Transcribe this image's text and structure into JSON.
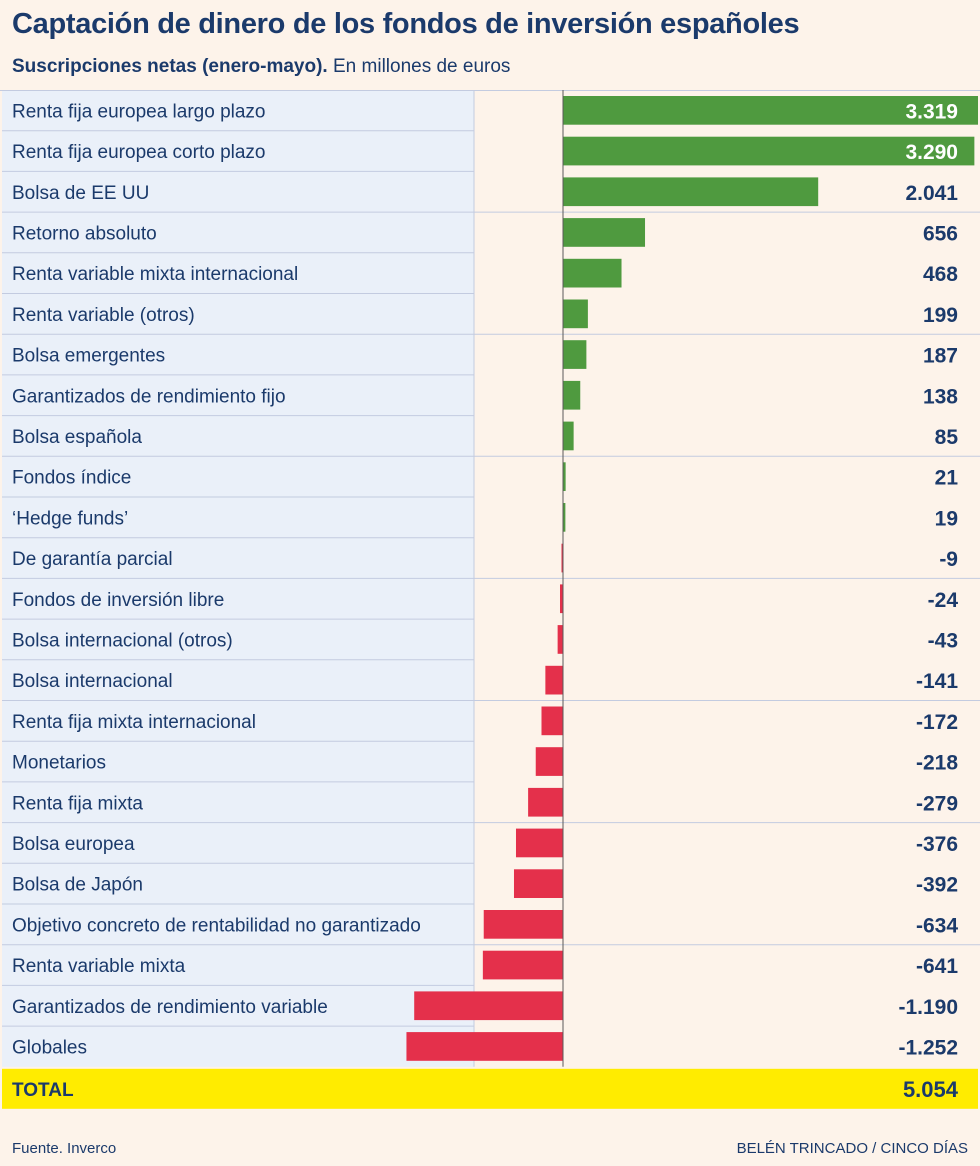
{
  "header": {
    "title": "Captación de dinero de los fondos de inversión españoles",
    "subtitle_bold": "Suscripciones netas (enero-mayo).",
    "subtitle_rest": "En millones de euros"
  },
  "footer": {
    "source": "Fuente. Inverco",
    "credit": "BELÉN TRINCADO / CINCO DÍAS"
  },
  "colors": {
    "positive": "#4f9a3f",
    "negative": "#e4304b",
    "label_band": "#eaf0f9",
    "grid": "#c3cbe0",
    "total_band": "#ffec00",
    "text": "#1b3a6b"
  },
  "chart_data": {
    "type": "bar",
    "orientation": "horizontal",
    "title": "Captación de dinero de los fondos de inversión españoles",
    "subtitle": "Suscripciones netas (enero-mayo). En millones de euros",
    "categories": [
      "Renta fija europea largo plazo",
      "Renta fija europea corto plazo",
      "Bolsa de EE UU",
      "Retorno absoluto",
      "Renta variable mixta internacional",
      "Renta variable (otros)",
      "Bolsa emergentes",
      "Garantizados de rendimiento fijo",
      "Bolsa española",
      "Fondos índice",
      "‘Hedge funds’",
      "De garantía parcial",
      "Fondos de inversión libre",
      "Bolsa internacional (otros)",
      "Bolsa internacional",
      "Renta fija mixta internacional",
      "Monetarios",
      "Renta fija mixta",
      "Bolsa europea",
      "Bolsa de Japón",
      "Objetivo concreto de rentabilidad no garantizado",
      "Renta variable mixta",
      "Garantizados de rendimiento variable",
      "Globales"
    ],
    "values": [
      3319,
      3290,
      2041,
      656,
      468,
      199,
      187,
      138,
      85,
      21,
      19,
      -9,
      -24,
      -43,
      -141,
      -172,
      -218,
      -279,
      -376,
      -392,
      -634,
      -641,
      -1190,
      -1252
    ],
    "value_labels": [
      "3.319",
      "3.290",
      "2.041",
      "656",
      "468",
      "199",
      "187",
      "138",
      "85",
      "21",
      "19",
      "-9",
      "-24",
      "-43",
      "-141",
      "-172",
      "-218",
      "-279",
      "-376",
      "-392",
      "-634",
      "-641",
      "-1.190",
      "-1.252"
    ],
    "xlim": [
      -1252,
      3319
    ],
    "total_label": "TOTAL",
    "total_value": "5.054",
    "xlabel": "",
    "ylabel": ""
  }
}
